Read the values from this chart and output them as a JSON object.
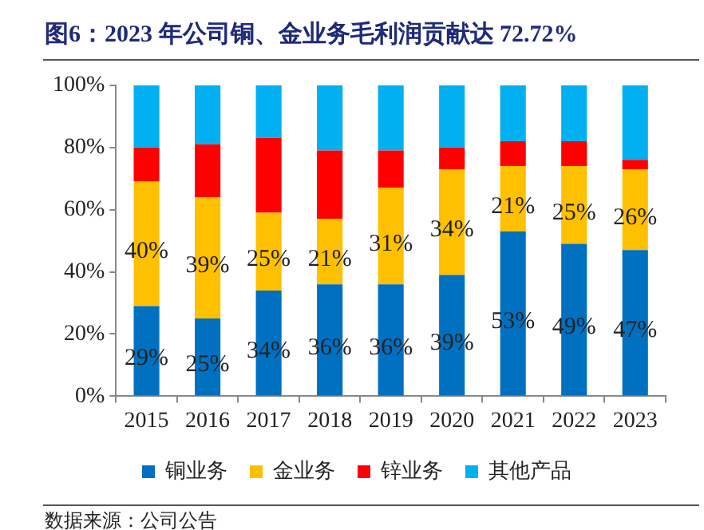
{
  "chart_data": {
    "type": "bar",
    "title": "图6：2023 年公司铜、金业务毛利润贡献达 72.72%",
    "categories": [
      "2015",
      "2016",
      "2017",
      "2018",
      "2019",
      "2020",
      "2021",
      "2022",
      "2023"
    ],
    "stacked": true,
    "series": [
      {
        "name": "铜业务",
        "color": "#0070c0",
        "values": [
          29,
          25,
          34,
          36,
          36,
          39,
          53,
          49,
          47
        ],
        "value_labels": [
          "29%",
          "25%",
          "34%",
          "36%",
          "36%",
          "39%",
          "53%",
          "49%",
          "47%"
        ]
      },
      {
        "name": "金业务",
        "color": "#ffc000",
        "values": [
          40,
          39,
          25,
          21,
          31,
          34,
          21,
          25,
          26
        ],
        "value_labels": [
          "40%",
          "39%",
          "25%",
          "21%",
          "31%",
          "34%",
          "21%",
          "25%",
          "26%"
        ]
      },
      {
        "name": "锌业务",
        "color": "#ff0000",
        "values": [
          11,
          17,
          24,
          22,
          12,
          7,
          8,
          8,
          3
        ]
      },
      {
        "name": "其他产品",
        "color": "#00b0f0",
        "values": [
          20,
          19,
          17,
          21,
          21,
          20,
          18,
          18,
          24
        ]
      }
    ],
    "ylim": [
      0,
      100
    ],
    "yticks": [
      {
        "value": 0,
        "label": "0%"
      },
      {
        "value": 20,
        "label": "20%"
      },
      {
        "value": 40,
        "label": "40%"
      },
      {
        "value": 60,
        "label": "60%"
      },
      {
        "value": 80,
        "label": "80%"
      },
      {
        "value": 100,
        "label": "100%"
      }
    ],
    "legend": "bottom",
    "annotations": [
      "数据来源：公司公告"
    ]
  }
}
